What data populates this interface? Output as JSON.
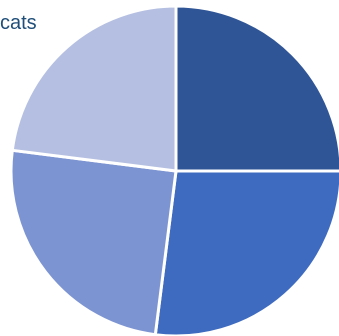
{
  "chart_data": {
    "type": "pie",
    "title": "cats",
    "categories": [
      "",
      "",
      "",
      ""
    ],
    "values": [
      25,
      27,
      25,
      23
    ],
    "colors": [
      "#2F5597",
      "#3E6BBF",
      "#7D94D2",
      "#B4BFE1"
    ],
    "legend": "none",
    "data_labels": "none"
  }
}
